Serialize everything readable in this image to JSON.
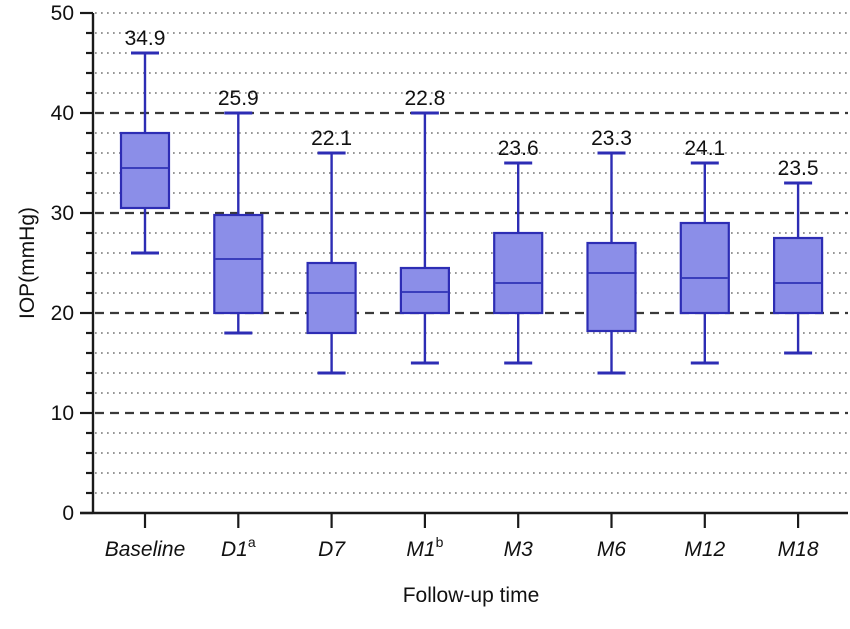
{
  "chart_data": {
    "type": "boxplot",
    "title": "",
    "xlabel": "Follow-up time",
    "ylabel": "IOP(mmHg)",
    "ylim": [
      0,
      50
    ],
    "y_major_ticks": [
      0,
      10,
      20,
      30,
      40,
      50
    ],
    "y_minor_tick_step": 2,
    "grid": {
      "dashed_at": [
        10,
        20,
        30,
        40
      ],
      "dotted_step": 2,
      "legend_position": "none"
    },
    "categories": [
      "Baseline",
      "D1",
      "D7",
      "M1",
      "M3",
      "M6",
      "M12",
      "M18"
    ],
    "boxes": [
      {
        "category": "Baseline",
        "superscript": "",
        "mean_label": "34.9",
        "whisker_low": 26,
        "q1": 30.5,
        "median": 34.5,
        "q3": 38,
        "whisker_high": 46
      },
      {
        "category": "D1",
        "superscript": "a",
        "mean_label": "25.9",
        "whisker_low": 18,
        "q1": 20,
        "median": 25.4,
        "q3": 29.8,
        "whisker_high": 40
      },
      {
        "category": "D7",
        "superscript": "",
        "mean_label": "22.1",
        "whisker_low": 14,
        "q1": 18,
        "median": 22,
        "q3": 25,
        "whisker_high": 36
      },
      {
        "category": "M1",
        "superscript": "b",
        "mean_label": "22.8",
        "whisker_low": 15,
        "q1": 20,
        "median": 22.1,
        "q3": 24.5,
        "whisker_high": 40
      },
      {
        "category": "M3",
        "superscript": "",
        "mean_label": "23.6",
        "whisker_low": 15,
        "q1": 20,
        "median": 23,
        "q3": 28,
        "whisker_high": 35
      },
      {
        "category": "M6",
        "superscript": "",
        "mean_label": "23.3",
        "whisker_low": 14,
        "q1": 18.2,
        "median": 24,
        "q3": 27,
        "whisker_high": 36
      },
      {
        "category": "M12",
        "superscript": "",
        "mean_label": "24.1",
        "whisker_low": 15,
        "q1": 20,
        "median": 23.5,
        "q3": 29,
        "whisker_high": 35
      },
      {
        "category": "M18",
        "superscript": "",
        "mean_label": "23.5",
        "whisker_low": 16,
        "q1": 20,
        "median": 23,
        "q3": 27.5,
        "whisker_high": 33
      }
    ],
    "colors": {
      "box_fill": "#8b8ee8",
      "box_stroke": "#2d2db4",
      "median": "#3a3ebc",
      "grid_dashed": "#3a3a3a",
      "grid_dotted": "#8a8a8a",
      "axis": "#1a1a1a",
      "text": "#111111",
      "background": "#ffffff"
    }
  }
}
